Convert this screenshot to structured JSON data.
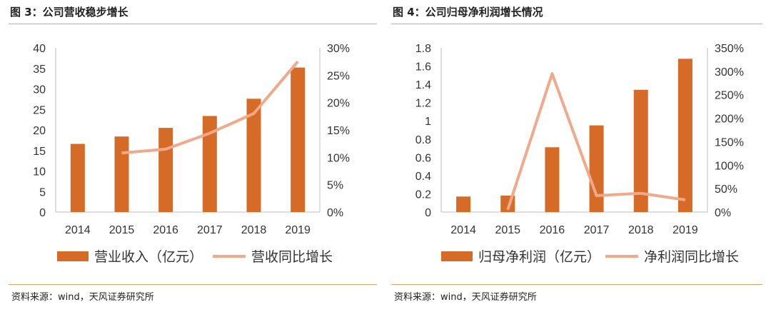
{
  "colors": {
    "bar": "#D56B27",
    "line": "#F0A98A",
    "axis": "#bfbfbf",
    "rule": "#E0A263"
  },
  "source_label": "资料来源：wind，天风证券研究所",
  "chart_data": [
    {
      "id": "left",
      "type": "bar",
      "title": "图 3：公司营收稳步增长",
      "categories": [
        "2014",
        "2015",
        "2016",
        "2017",
        "2018",
        "2019"
      ],
      "y_left": {
        "min": 0,
        "max": 40,
        "ticks": [
          "0",
          "5",
          "10",
          "15",
          "20",
          "25",
          "30",
          "35",
          "40"
        ]
      },
      "y_right": {
        "min": 0,
        "max": 30,
        "ticks": [
          "0%",
          "5%",
          "10%",
          "15%",
          "20%",
          "25%",
          "30%"
        ]
      },
      "bars": {
        "name": "营业收入（亿元）",
        "values": [
          16.6,
          18.4,
          20.5,
          23.4,
          27.6,
          35.2
        ]
      },
      "line": {
        "name": "营收同比增长",
        "values": [
          null,
          10.8,
          11.5,
          14.4,
          18.0,
          27.5
        ]
      },
      "legend": "bottom"
    },
    {
      "id": "right",
      "type": "bar",
      "title": "图 4：公司归母净利润增长情况",
      "categories": [
        "2014",
        "2015",
        "2016",
        "2017",
        "2018",
        "2019"
      ],
      "y_left": {
        "min": 0,
        "max": 1.8,
        "ticks": [
          "0",
          "0.2",
          "0.4",
          "0.6",
          "0.8",
          "1",
          "1.2",
          "1.4",
          "1.6",
          "1.8"
        ]
      },
      "y_right": {
        "min": 0,
        "max": 350,
        "ticks": [
          "0%",
          "50%",
          "100%",
          "150%",
          "200%",
          "250%",
          "300%",
          "350%"
        ]
      },
      "bars": {
        "name": "归母净利润（亿元）",
        "values": [
          0.17,
          0.18,
          0.71,
          0.95,
          1.34,
          1.68
        ]
      },
      "line": {
        "name": "净利润同比增长",
        "values": [
          null,
          5,
          295,
          35,
          40,
          26
        ]
      },
      "legend": "bottom"
    }
  ]
}
